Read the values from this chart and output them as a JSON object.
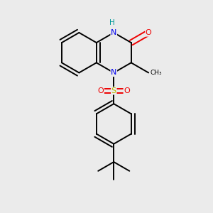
{
  "background_color": "#ebebeb",
  "atom_colors": {
    "C": "#000000",
    "N": "#0000ee",
    "O": "#ee0000",
    "S": "#bbbb00",
    "H": "#009999"
  },
  "bond_color": "#000000",
  "bond_width": 1.4,
  "figsize": [
    3.0,
    3.0
  ],
  "dpi": 100,
  "bl": 0.38
}
